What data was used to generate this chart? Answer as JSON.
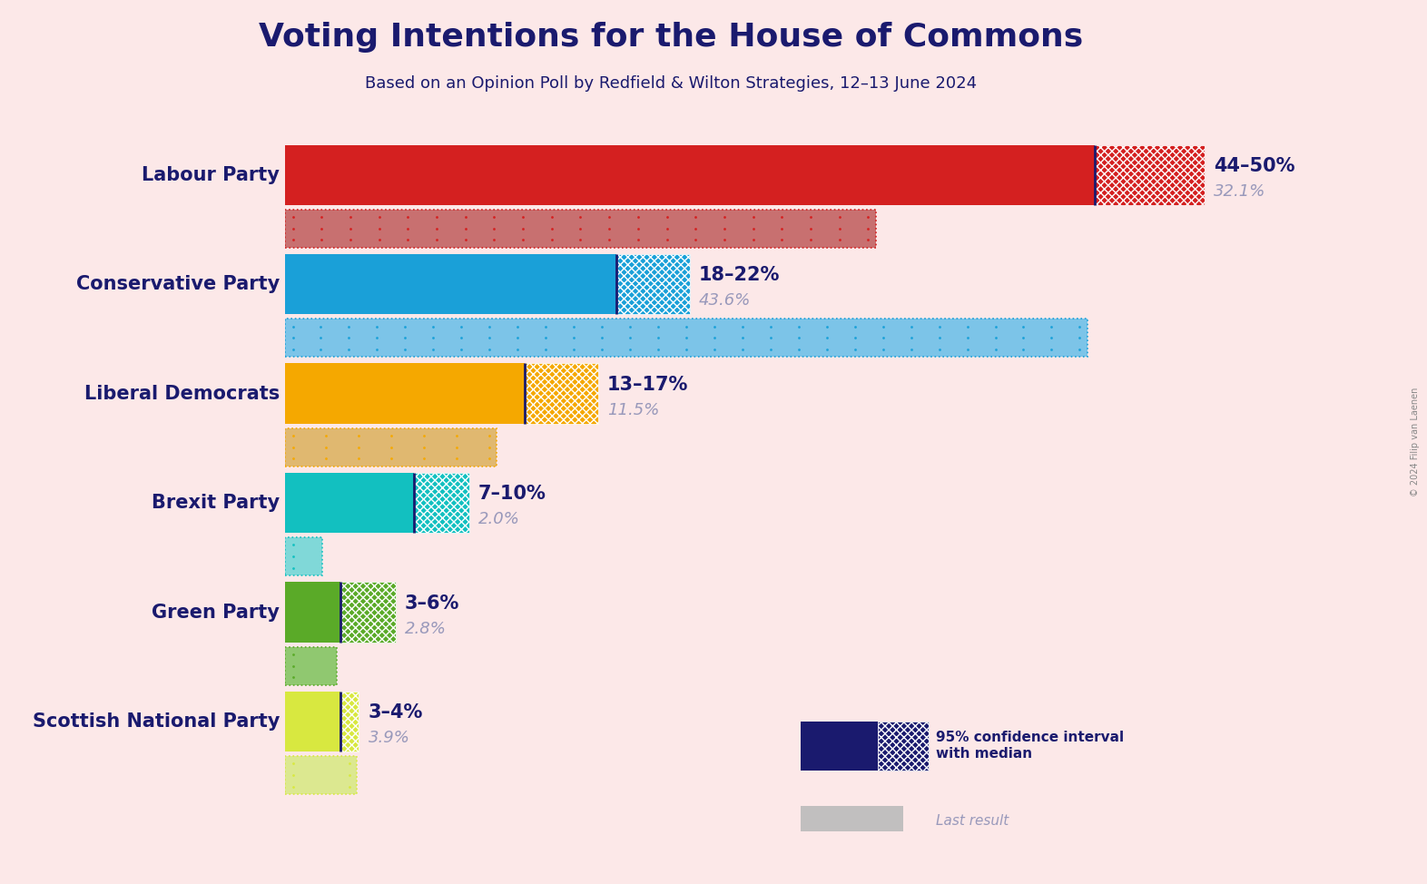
{
  "title": "Voting Intentions for the House of Commons",
  "subtitle": "Based on an Opinion Poll by Redfield & Wilton Strategies, 12–13 June 2024",
  "copyright": "© 2024 Filip van Laenen",
  "background_color": "#fce8e8",
  "title_color": "#1a1a6e",
  "subtitle_color": "#1a1a6e",
  "parties": [
    {
      "name": "Labour Party",
      "ci_low": 44,
      "ci_high": 50,
      "last_result": 32.1,
      "color": "#d42020",
      "dotted_color": "#c87070",
      "ci_text": "44–50%",
      "last_text": "32.1%"
    },
    {
      "name": "Conservative Party",
      "ci_low": 18,
      "ci_high": 22,
      "last_result": 43.6,
      "color": "#1aa0d8",
      "dotted_color": "#7cc4e8",
      "ci_text": "18–22%",
      "last_text": "43.6%"
    },
    {
      "name": "Liberal Democrats",
      "ci_low": 13,
      "ci_high": 17,
      "last_result": 11.5,
      "color": "#f5a800",
      "dotted_color": "#e0b870",
      "ci_text": "13–17%",
      "last_text": "11.5%"
    },
    {
      "name": "Brexit Party",
      "ci_low": 7,
      "ci_high": 10,
      "last_result": 2.0,
      "color": "#12c0c0",
      "dotted_color": "#80d8d8",
      "ci_text": "7–10%",
      "last_text": "2.0%"
    },
    {
      "name": "Green Party",
      "ci_low": 3,
      "ci_high": 6,
      "last_result": 2.8,
      "color": "#5aaa28",
      "dotted_color": "#90c870",
      "ci_text": "3–6%",
      "last_text": "2.8%"
    },
    {
      "name": "Scottish National Party",
      "ci_low": 3,
      "ci_high": 4,
      "last_result": 3.9,
      "color": "#d8e840",
      "dotted_color": "#dce890",
      "ci_text": "3–4%",
      "last_text": "3.9%"
    }
  ],
  "x_max": 52,
  "dark_blue": "#1a1a6e",
  "grey_label": "#9999bb",
  "legend_ci_color": "#1a1a6e",
  "legend_last_color": "#aaaaaa",
  "bar_height": 0.55,
  "dot_bar_height": 0.35,
  "dot_bar_gap": 0.04
}
